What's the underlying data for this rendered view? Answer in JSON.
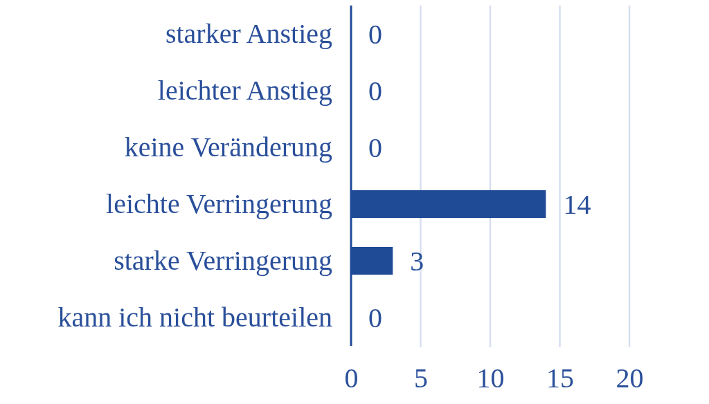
{
  "chart_data": {
    "type": "bar",
    "orientation": "horizontal",
    "categories": [
      "starker Anstieg",
      "leichter Anstieg",
      "keine Veränderung",
      "leichte Verringerung",
      "starke Verringerung",
      "kann ich nicht beurteilen"
    ],
    "values": [
      0,
      0,
      0,
      14,
      3,
      0
    ],
    "color": "#1f4a96",
    "xlim": [
      0,
      20
    ],
    "xticks": [
      0,
      5,
      10,
      15,
      20
    ],
    "grid": "x",
    "data_labels": true
  }
}
